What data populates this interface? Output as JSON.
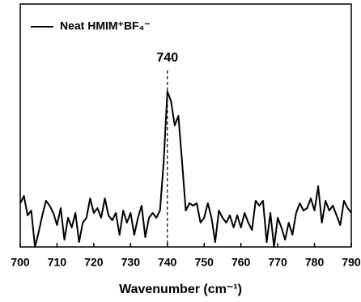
{
  "chart_data": {
    "type": "line",
    "xlabel": "Wavenumber (cm⁻¹)",
    "x": [
      700,
      701,
      702,
      703,
      704,
      705,
      706,
      707,
      708,
      709,
      710,
      711,
      712,
      713,
      714,
      715,
      716,
      717,
      718,
      719,
      720,
      721,
      722,
      723,
      724,
      725,
      726,
      727,
      728,
      729,
      730,
      731,
      732,
      733,
      734,
      735,
      736,
      737,
      738,
      739,
      740,
      741,
      742,
      743,
      744,
      745,
      746,
      747,
      748,
      749,
      750,
      751,
      752,
      753,
      754,
      755,
      756,
      757,
      758,
      759,
      760,
      761,
      762,
      763,
      764,
      765,
      766,
      767,
      768,
      769,
      770,
      771,
      772,
      773,
      774,
      775,
      776,
      777,
      778,
      779,
      780,
      781,
      782,
      783,
      784,
      785,
      786,
      787,
      788,
      789,
      790
    ],
    "series": [
      {
        "name": "Neat HMIM⁺BF₄⁻",
        "color": "#000000",
        "values": [
          0.18,
          0.21,
          0.13,
          0.15,
          0.0,
          0.06,
          0.13,
          0.19,
          0.17,
          0.14,
          0.09,
          0.16,
          0.03,
          0.12,
          0.08,
          0.14,
          0.02,
          0.1,
          0.12,
          0.2,
          0.14,
          0.16,
          0.12,
          0.2,
          0.13,
          0.11,
          0.14,
          0.05,
          0.15,
          0.1,
          0.14,
          0.05,
          0.12,
          0.17,
          0.04,
          0.12,
          0.14,
          0.12,
          0.15,
          0.35,
          0.64,
          0.6,
          0.5,
          0.54,
          0.35,
          0.15,
          0.18,
          0.17,
          0.18,
          0.1,
          0.12,
          0.18,
          0.12,
          0.02,
          0.15,
          0.12,
          0.1,
          0.13,
          0.08,
          0.13,
          0.08,
          0.14,
          0.1,
          0.07,
          0.19,
          0.17,
          0.19,
          0.02,
          0.14,
          0.0,
          0.12,
          0.08,
          0.03,
          0.1,
          0.05,
          0.14,
          0.18,
          0.15,
          0.16,
          0.2,
          0.15,
          0.25,
          0.1,
          0.19,
          0.15,
          0.17,
          0.13,
          0.09,
          0.19,
          0.16,
          0.14
        ]
      }
    ],
    "annotation": {
      "x": 740
    },
    "xlim": [
      700,
      790
    ],
    "xticks": [
      700,
      710,
      720,
      730,
      740,
      750,
      760,
      770,
      780,
      790
    ],
    "ylim": [
      0,
      1
    ],
    "legend": "upper left"
  }
}
